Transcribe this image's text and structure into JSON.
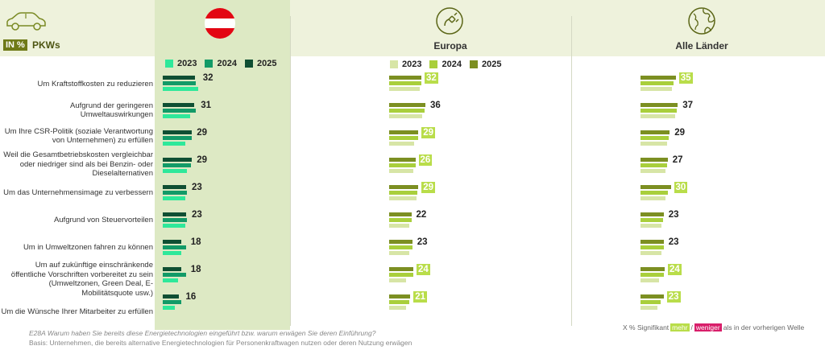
{
  "header": {
    "unit_badge": "IN %",
    "segment_label": "PKWs",
    "columns": [
      {
        "name": "",
        "icon": "austria-flag-icon"
      },
      {
        "name": "Europa",
        "icon": "ev-charging-plug-icon"
      },
      {
        "name": "Alle Länder",
        "icon": "globe-icon"
      }
    ],
    "car_icon": "car-icon"
  },
  "colors": {
    "austria": [
      "#2ee89a",
      "#129a67",
      "#0f4f33"
    ],
    "other": [
      "#d7e5a6",
      "#a9cf3c",
      "#7c8f22"
    ],
    "highlight_more": "#b9dd4a",
    "highlight_less": "#d81e6a"
  },
  "chart_data": {
    "type": "bar",
    "years": [
      "2023",
      "2024",
      "2025"
    ],
    "categories": [
      "Um Kraftstoffkosten zu reduzieren",
      "Aufgrund der geringeren Umweltauswirkungen",
      "Um Ihre CSR-Politik (soziale Verantwortung von Unternehmen) zu erfüllen",
      "Weil die Gesamtbetriebskosten vergleichbar oder niedriger sind als bei Benzin- oder Dieselalternativen",
      "Um das Unternehmensimage zu verbessern",
      "Aufgrund von Steuervorteilen",
      "Um in Umweltzonen fahren zu können",
      "Um auf zukünftige einschränkende öffentliche Vorschriften vorbereitet zu sein (Umweltzonen, Green Deal, E-Mobilitätsquote usw.)",
      "Um die Wünsche Ihrer Mitarbeiter zu erfüllen"
    ],
    "panels": [
      {
        "name": "Österreich",
        "series": [
          {
            "name": "2023",
            "values": [
              35,
              27,
              22,
              24,
              22,
              22,
              18,
              15,
              12
            ]
          },
          {
            "name": "2024",
            "values": [
              33,
              33,
              29,
              28,
              24,
              24,
              23,
              23,
              18
            ]
          },
          {
            "name": "2025",
            "values": [
              32,
              31,
              29,
              29,
              23,
              23,
              18,
              18,
              16
            ]
          }
        ],
        "labels": [
          "32",
          "31",
          "29",
          "29",
          "23",
          "23",
          "18",
          "18",
          "16"
        ],
        "significance": [
          "none",
          "none",
          "none",
          "none",
          "none",
          "none",
          "none",
          "none",
          "none"
        ]
      },
      {
        "name": "Europa",
        "series": [
          {
            "name": "2023",
            "values": [
              30,
              33,
              25,
              24,
              27,
              20,
              20,
              17,
              17
            ]
          },
          {
            "name": "2024",
            "values": [
              32,
              35,
              29,
              26,
              28,
              22,
              23,
              24,
              20
            ]
          },
          {
            "name": "2025",
            "values": [
              32,
              36,
              29,
              26,
              29,
              22,
              23,
              24,
              21
            ]
          }
        ],
        "labels": [
          "32",
          "36",
          "29",
          "26",
          "29",
          "22",
          "23",
          "24",
          "21"
        ],
        "significance": [
          "more",
          "none",
          "more",
          "more",
          "more",
          "none",
          "none",
          "more",
          "more"
        ]
      },
      {
        "name": "Alle Länder",
        "series": [
          {
            "name": "2023",
            "values": [
              31,
              34,
              26,
              25,
              25,
              21,
              21,
              18,
              17
            ]
          },
          {
            "name": "2024",
            "values": [
              33,
              36,
              28,
              26,
              27,
              22,
              23,
              23,
              20
            ]
          },
          {
            "name": "2025",
            "values": [
              35,
              37,
              29,
              27,
              30,
              23,
              23,
              24,
              23
            ]
          }
        ],
        "labels": [
          "35",
          "37",
          "29",
          "27",
          "30",
          "23",
          "23",
          "24",
          "23"
        ],
        "significance": [
          "more",
          "none",
          "none",
          "none",
          "more",
          "none",
          "none",
          "more",
          "more"
        ]
      }
    ],
    "xlim": [
      0,
      40
    ]
  },
  "footer": {
    "question": "E28A  Warum haben Sie bereits diese Energietechnologien eingeführt bzw. warum erwägen Sie deren Einführung?",
    "basis": "Basis: Unternehmen, die bereits alternative Energietechnologien für Personenkraftwagen nutzen oder deren Nutzung erwägen",
    "note_prefix": "X % Signifikant",
    "note_more": "mehr",
    "note_sep": "/",
    "note_less": "weniger",
    "note_suffix": "als in der vorherigen Welle"
  }
}
